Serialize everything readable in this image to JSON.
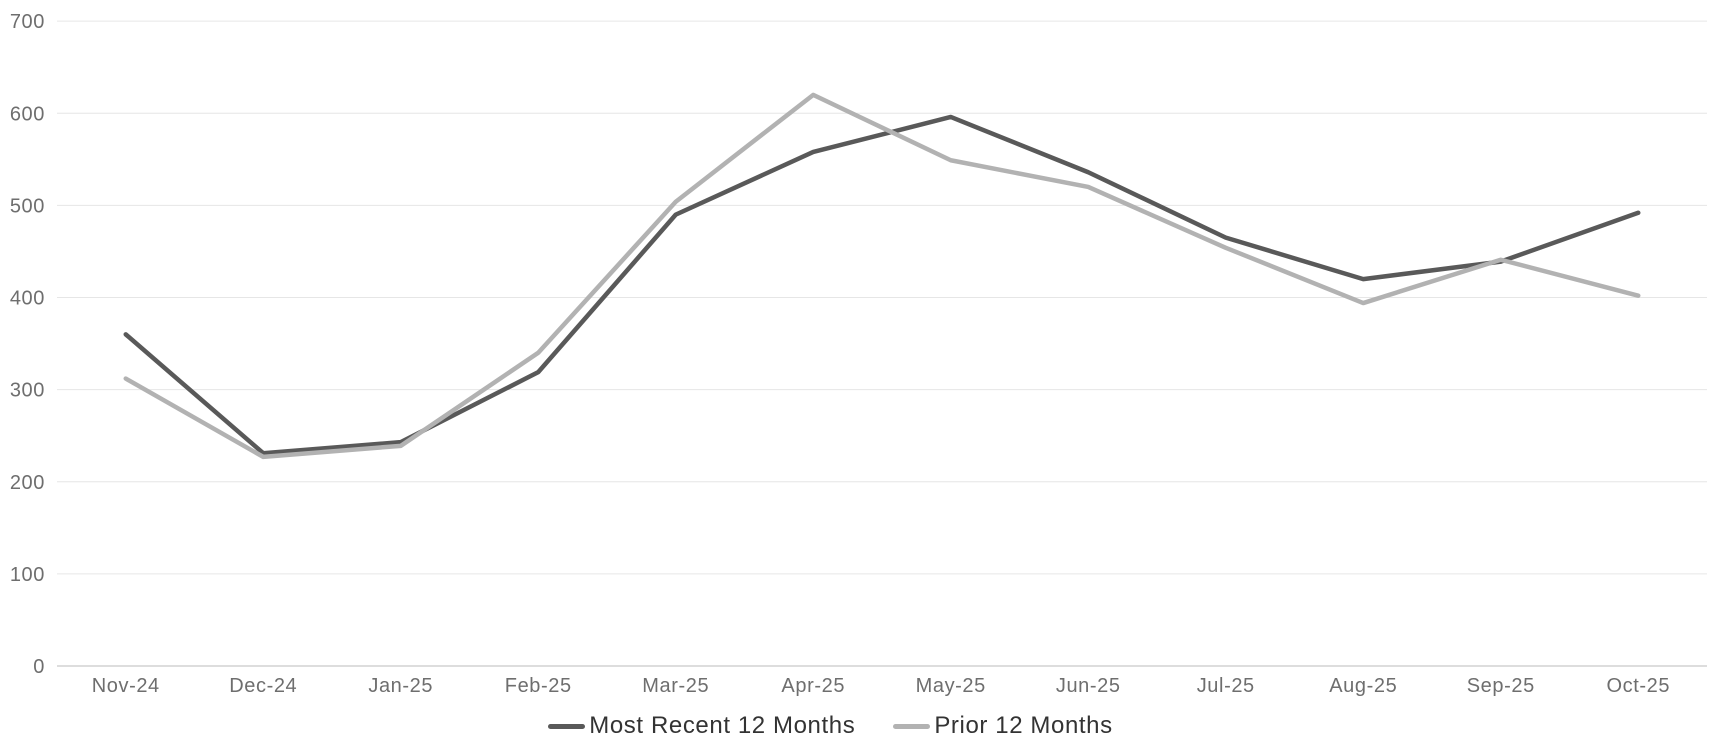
{
  "chart_data": {
    "type": "line",
    "title": "",
    "xlabel": "",
    "ylabel": "",
    "categories": [
      "Nov-24",
      "Dec-24",
      "Jan-25",
      "Feb-25",
      "Mar-25",
      "Apr-25",
      "May-25",
      "Jun-25",
      "Jul-25",
      "Aug-25",
      "Sep-25",
      "Oct-25"
    ],
    "series": [
      {
        "name": "Most Recent 12 Months",
        "color": "#595959",
        "values": [
          360,
          231,
          243,
          319,
          490,
          558,
          596,
          536,
          465,
          420,
          439,
          492
        ]
      },
      {
        "name": "Prior 12 Months",
        "color": "#b2b2b2",
        "values": [
          312,
          227,
          239,
          340,
          504,
          620,
          549,
          520,
          454,
          394,
          441,
          402
        ]
      }
    ],
    "ylim": [
      0,
      700
    ],
    "yticks": [
      0,
      100,
      200,
      300,
      400,
      500,
      600,
      700
    ],
    "grid": "horizontal",
    "legend_position": "bottom-center",
    "colors": {
      "background": "#ffffff",
      "grid_line": "#e6e6e6",
      "axis_line": "#d2d2d2",
      "tick_label": "#6e6e6e",
      "legend_text": "#333333"
    }
  }
}
